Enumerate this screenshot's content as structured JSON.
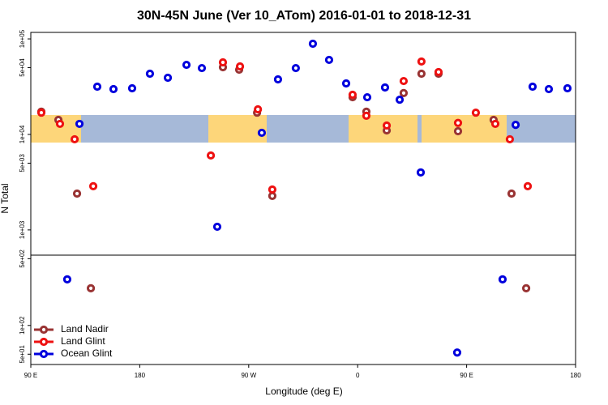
{
  "chart_data": {
    "type": "scatter",
    "title": "30N-45N June (Ver 10_ATom)   2016-01-01 to 2018-12-31",
    "x_label": "Longitude (deg E)",
    "y_label": "N Total",
    "log_y": true,
    "xlim": [
      90,
      540
    ],
    "ylim": [
      39,
      117000
    ],
    "xticks": [
      {
        "value": 90,
        "label": "90 E"
      },
      {
        "value": 180,
        "label": "180"
      },
      {
        "value": 270,
        "label": "90 W"
      },
      {
        "value": 360,
        "label": "0"
      },
      {
        "value": 450,
        "label": "90 E"
      },
      {
        "value": 540,
        "label": "180"
      }
    ],
    "yticks": [
      {
        "value": 100000,
        "label": "1e+05"
      },
      {
        "value": 50000,
        "label": "5e+04"
      },
      {
        "value": 10000,
        "label": "1e+04"
      },
      {
        "value": 5000,
        "label": "5e+03"
      },
      {
        "value": 1000,
        "label": "1e+03"
      },
      {
        "value": 500,
        "label": "5e+02"
      },
      {
        "value": 100,
        "label": "1e+02"
      },
      {
        "value": 50,
        "label": "5e+01"
      }
    ],
    "legend": "bottom-left",
    "series": [
      {
        "name": "Land Nadir",
        "color": "#993333",
        "x": [
          98.7,
          112.8,
          128.2,
          139.6,
          248.7,
          262.1,
          276.9,
          289.5,
          355.8,
          367.2,
          384.0,
          398.0,
          412.7,
          426.8,
          442.9,
          472.3,
          487.1,
          499.2
        ],
        "values": [
          17300,
          14200,
          2400,
          245,
          50500,
          47600,
          16900,
          2270,
          24500,
          17300,
          11000,
          27100,
          43200,
          43200,
          10800,
          14200,
          2400,
          245
        ]
      },
      {
        "name": "Land Glint",
        "color": "#ee1111",
        "x": [
          98.7,
          114.1,
          126.2,
          141.6,
          238.7,
          248.7,
          262.8,
          277.6,
          289.5,
          355.8,
          367.2,
          384.0,
          398.0,
          412.7,
          426.8,
          442.9,
          457.6,
          473.7,
          485.7,
          500.5
        ],
        "values": [
          16900,
          12900,
          8900,
          2870,
          6020,
          56800,
          51500,
          18300,
          2650,
          26000,
          15700,
          12400,
          36200,
          58000,
          45000,
          13200,
          16900,
          12900,
          8900,
          2870
        ]
      },
      {
        "name": "Ocean Glint",
        "color": "#0000dd",
        "x": [
          120.1,
          130.2,
          144.9,
          158.3,
          173.7,
          188.4,
          203.2,
          218.6,
          231.3,
          244.0,
          280.8,
          294.2,
          308.9,
          323.0,
          336.4,
          350.5,
          367.9,
          382.6,
          394.7,
          412.1,
          442.2,
          479.7,
          490.5,
          504.5,
          517.9,
          533.3
        ],
        "values": [
          304,
          12900,
          31600,
          29800,
          30400,
          43200,
          39200,
          53500,
          49500,
          1080,
          10400,
          37700,
          49500,
          89000,
          60300,
          34200,
          24500,
          31000,
          23100,
          4000,
          52,
          304,
          12600,
          31600,
          29800,
          30400
        ]
      }
    ]
  }
}
